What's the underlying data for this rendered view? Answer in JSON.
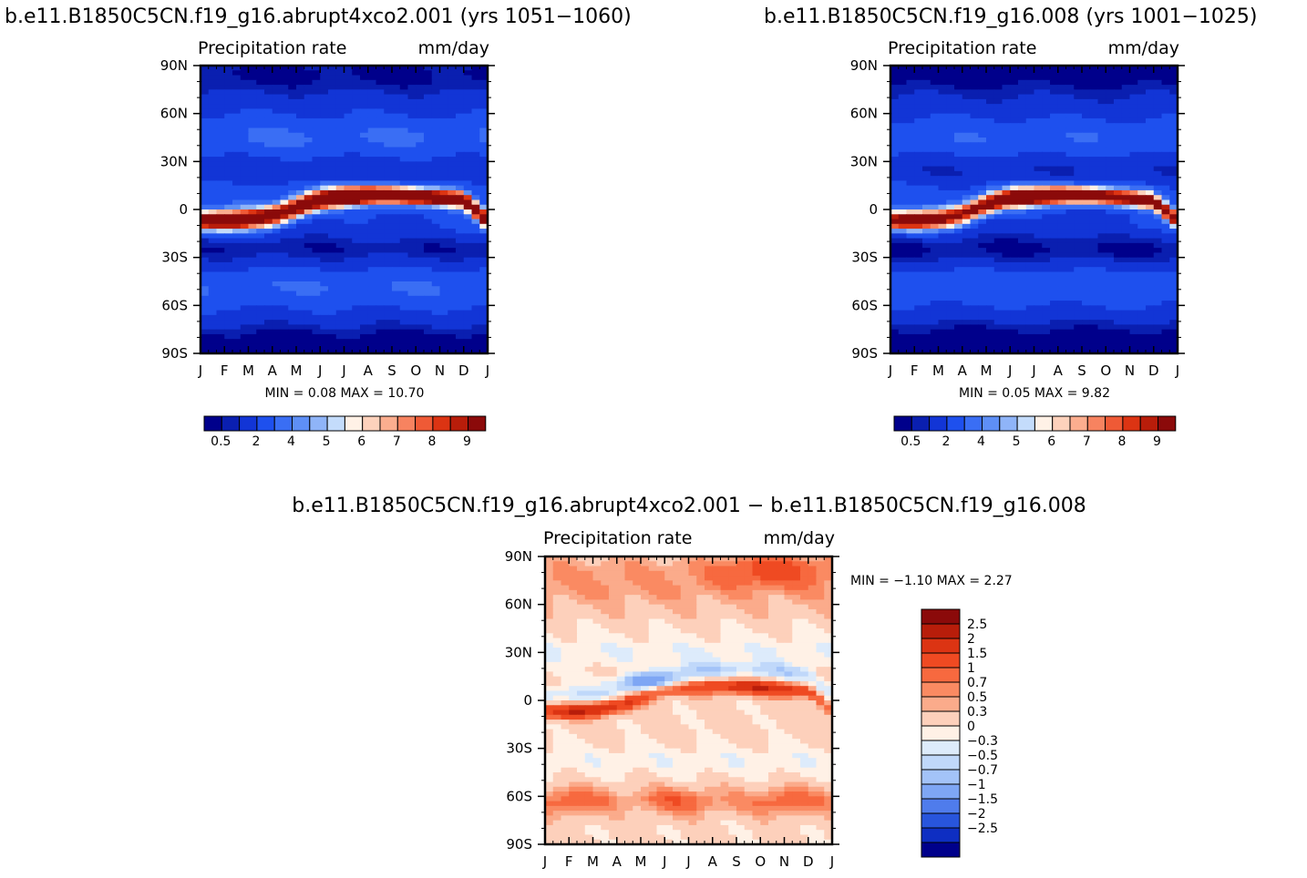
{
  "colors": {
    "abs_levels": [
      "#00008b",
      "#0a1fb0",
      "#1235d6",
      "#1e50ee",
      "#3a6ef4",
      "#5e8ff6",
      "#8fb4f8",
      "#c4dcfb",
      "#fff1e6",
      "#fdd2bc",
      "#fbae8f",
      "#f78360",
      "#ef5a36",
      "#dc3413",
      "#b81d0a",
      "#8b0a0a"
    ],
    "diff_levels": [
      "#8b0a0a",
      "#b81d0a",
      "#dc3413",
      "#ef4a22",
      "#f7693f",
      "#fa8a62",
      "#fbab8b",
      "#fdd0bb",
      "#fff1e6",
      "#ddebfb",
      "#c0d8fa",
      "#a3c3f8",
      "#7ea6f4",
      "#4f7cec",
      "#2855dc",
      "#0e2ec2",
      "#00008b"
    ]
  },
  "chart_data": [
    {
      "id": "panel-a",
      "type": "heatmap",
      "title": "b.e11.B1850C5CN.f19_g16.abrupt4xco2.001  (yrs  1051−1060)",
      "subtitle_left": "Precipitation  rate",
      "subtitle_right": "mm/day",
      "xlabel": "",
      "ylabel": "",
      "x_tick_labels": [
        "J",
        "F",
        "M",
        "A",
        "M",
        "J",
        "J",
        "A",
        "S",
        "O",
        "N",
        "D",
        "J"
      ],
      "y_tick_labels": [
        "90N",
        "60N",
        "30N",
        "0",
        "30S",
        "60S",
        "90S"
      ],
      "y_tick_values": [
        90,
        60,
        30,
        0,
        -30,
        -60,
        -90
      ],
      "xlim": [
        0,
        12
      ],
      "ylim": [
        -90,
        90
      ],
      "stats": "MIN =      0.08  MAX =     10.70",
      "min": 0.08,
      "max": 10.7,
      "colorbar_labels": [
        "0.5",
        "2",
        "4",
        "5",
        "6",
        "7",
        "8",
        "9"
      ],
      "colorbar_levels": [
        0.5,
        1,
        2,
        3,
        4,
        4.5,
        5,
        5.5,
        6,
        6.5,
        7,
        7.5,
        8,
        8.5,
        9
      ],
      "itcz_lat_by_month": [
        -7,
        -7,
        -6,
        -4,
        1,
        6,
        8,
        9,
        9,
        8,
        7,
        6,
        -7
      ],
      "itcz_peak_by_month": [
        8.5,
        9,
        8.6,
        8.3,
        8.7,
        9.3,
        10.5,
        10.7,
        10.3,
        9.6,
        9,
        8.6,
        8.5
      ]
    },
    {
      "id": "panel-b",
      "type": "heatmap",
      "title": "b.e11.B1850C5CN.f19_g16.008  (yrs  1001−1025)",
      "subtitle_left": "Precipitation  rate",
      "subtitle_right": "mm/day",
      "xlabel": "",
      "ylabel": "",
      "x_tick_labels": [
        "J",
        "F",
        "M",
        "A",
        "M",
        "J",
        "J",
        "A",
        "S",
        "O",
        "N",
        "D",
        "J"
      ],
      "y_tick_labels": [
        "90N",
        "60N",
        "30N",
        "0",
        "30S",
        "60S",
        "90S"
      ],
      "y_tick_values": [
        90,
        60,
        30,
        0,
        -30,
        -60,
        -90
      ],
      "xlim": [
        0,
        12
      ],
      "ylim": [
        -90,
        90
      ],
      "stats": "MIN =      0.05  MAX =       9.82",
      "min": 0.05,
      "max": 9.82,
      "colorbar_labels": [
        "0.5",
        "2",
        "4",
        "5",
        "6",
        "7",
        "8",
        "9"
      ],
      "colorbar_levels": [
        0.5,
        1,
        2,
        3,
        4,
        4.5,
        5,
        5.5,
        6,
        6.5,
        7,
        7.5,
        8,
        8.5,
        9
      ],
      "itcz_lat_by_month": [
        -7,
        -7,
        -6,
        -3,
        3,
        7,
        8,
        9,
        9,
        8,
        7,
        5,
        -7
      ],
      "itcz_peak_by_month": [
        8,
        8.4,
        7.8,
        7.5,
        8,
        8.8,
        9.6,
        9.8,
        9.4,
        8.8,
        8.2,
        7.8,
        8
      ]
    },
    {
      "id": "panel-diff",
      "type": "heatmap",
      "title": "b.e11.B1850C5CN.f19_g16.abrupt4xco2.001  −  b.e11.B1850C5CN.f19_g16.008",
      "subtitle_left": "Precipitation  rate",
      "subtitle_right": "mm/day",
      "xlabel": "",
      "ylabel": "",
      "x_tick_labels": [
        "J",
        "F",
        "M",
        "A",
        "M",
        "J",
        "J",
        "A",
        "S",
        "O",
        "N",
        "D",
        "J"
      ],
      "y_tick_labels": [
        "90N",
        "60N",
        "30N",
        "0",
        "30S",
        "60S",
        "90S"
      ],
      "y_tick_values": [
        90,
        60,
        30,
        0,
        -30,
        -60,
        -90
      ],
      "xlim": [
        0,
        12
      ],
      "ylim": [
        -90,
        90
      ],
      "stats": "MIN =    −1.10  MAX =      2.27",
      "min": -1.1,
      "max": 2.27,
      "colorbar_labels": [
        "2.5",
        "2",
        "1.5",
        "1",
        "0.7",
        "0.5",
        "0.3",
        "0",
        "−0.3",
        "−0.5",
        "−0.7",
        "−1",
        "−1.5",
        "−2",
        "−2.5"
      ],
      "colorbar_levels": [
        2.5,
        2,
        1.5,
        1,
        0.7,
        0.5,
        0.3,
        0,
        -0.3,
        -0.5,
        -0.7,
        -1,
        -1.5,
        -2,
        -2.5
      ]
    }
  ]
}
